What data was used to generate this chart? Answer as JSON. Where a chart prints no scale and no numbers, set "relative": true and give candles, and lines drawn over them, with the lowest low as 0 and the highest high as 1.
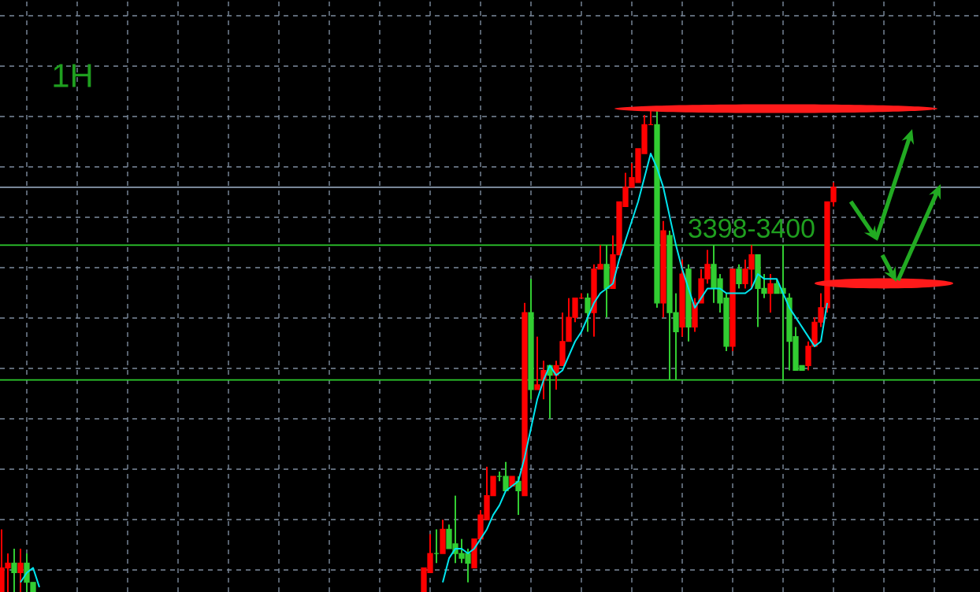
{
  "chart_data": {
    "type": "candlestick",
    "title": "1H",
    "annotations": [
      "3398-3400"
    ],
    "relative": true,
    "grid": true,
    "categories": [
      null,
      null,
      null,
      null,
      null,
      null,
      null,
      null,
      null,
      null,
      null,
      null,
      null,
      null,
      null,
      null,
      null,
      null,
      null,
      null,
      null,
      null,
      null,
      null,
      null,
      null,
      null,
      null,
      null,
      null,
      null,
      null,
      null,
      null,
      null,
      null,
      null,
      null,
      null,
      null,
      null,
      null,
      null,
      null,
      null,
      null,
      null,
      null,
      null,
      null,
      null,
      null,
      null,
      null,
      null,
      null,
      null,
      null,
      null,
      null,
      null,
      null,
      null,
      null,
      null,
      null,
      null,
      null,
      null,
      null,
      null,
      null,
      null,
      null,
      null,
      null,
      null,
      null,
      null,
      null,
      null,
      null,
      null,
      null,
      null,
      null,
      null,
      null,
      null,
      null,
      null,
      null,
      null,
      null,
      null,
      null,
      null,
      null,
      null,
      null,
      null,
      null,
      null,
      null,
      null,
      null,
      null,
      null,
      null,
      null,
      null,
      null,
      null,
      null,
      null,
      null,
      null,
      null,
      null,
      null,
      null,
      null,
      null,
      null,
      null,
      null,
      null,
      null,
      null,
      null,
      null,
      null,
      null
    ],
    "ohlc": [
      [
        0,
        0.13,
        0,
        0.05
      ],
      [
        0.05,
        0.08,
        0,
        0.06
      ],
      [
        0.06,
        0.09,
        0,
        0.04
      ],
      [
        0.04,
        0.09,
        0,
        0.06
      ],
      [
        0.06,
        0.08,
        0,
        0.02
      ],
      [
        0.02,
        0.02,
        0,
        0
      ],
      null,
      null,
      null,
      null,
      null,
      null,
      null,
      null,
      null,
      null,
      null,
      null,
      null,
      null,
      null,
      null,
      null,
      null,
      null,
      null,
      null,
      null,
      null,
      null,
      null,
      null,
      null,
      null,
      null,
      null,
      null,
      null,
      null,
      null,
      null,
      null,
      null,
      null,
      null,
      null,
      null,
      null,
      null,
      null,
      null,
      null,
      null,
      null,
      null,
      null,
      null,
      null,
      null,
      null,
      null,
      null,
      null,
      null,
      null,
      null,
      null,
      [
        0,
        0.05,
        0,
        0.05
      ],
      [
        0.04,
        0.12,
        0.04,
        0.08
      ],
      [
        0.08,
        0.13,
        0.06,
        0.08
      ],
      [
        0.08,
        0.15,
        0.08,
        0.13
      ],
      [
        0.13,
        0.14,
        0.09,
        0.09
      ],
      [
        0.1,
        0.2,
        0.06,
        0.08
      ],
      [
        0.08,
        0.11,
        0.06,
        0.07
      ],
      [
        0.08,
        0.09,
        0.02,
        0.06
      ],
      [
        0.05,
        0.11,
        0.05,
        0.11
      ],
      [
        0.11,
        0.17,
        0.11,
        0.16
      ],
      [
        0.15,
        0.26,
        0.15,
        0.2
      ],
      [
        0.2,
        0.24,
        0.2,
        0.24
      ],
      [
        0.24,
        0.25,
        0.23,
        0.24
      ],
      [
        0.24,
        0.27,
        0.21,
        0.21
      ],
      [
        0.22,
        0.24,
        0.22,
        0.24
      ],
      [
        0.23,
        0.24,
        0.16,
        0.21
      ],
      [
        0.2,
        0.6,
        0.2,
        0.58
      ],
      [
        0.58,
        0.65,
        0.4,
        0.42
      ],
      [
        0.42,
        0.53,
        0.42,
        0.43
      ],
      [
        0.44,
        0.48,
        0.4,
        0.46
      ],
      [
        0.47,
        0.47,
        0.36,
        0.45
      ],
      [
        0.45,
        0.48,
        0.42,
        0.47
      ],
      [
        0.47,
        0.58,
        0.47,
        0.52
      ],
      [
        0.52,
        0.61,
        0.52,
        0.57
      ],
      [
        0.57,
        0.61,
        0.56,
        0.61
      ],
      [
        0.61,
        0.62,
        0.61,
        0.61
      ],
      [
        0.61,
        0.62,
        0.54,
        0.58
      ],
      [
        0.58,
        0.68,
        0.53,
        0.67
      ],
      [
        0.67,
        0.72,
        0.67,
        0.68
      ],
      [
        0.68,
        0.72,
        0.57,
        0.63
      ],
      [
        0.63,
        0.74,
        0.63,
        0.7
      ],
      [
        0.7,
        0.81,
        0.7,
        0.81
      ],
      [
        0.8,
        0.87,
        0.8,
        0.84
      ],
      [
        0.84,
        0.89,
        0.84,
        0.86
      ],
      [
        0.85,
        0.92,
        0.85,
        0.92
      ],
      [
        0.91,
        0.99,
        0.91,
        0.97
      ],
      [
        0.97,
        1.0,
        0.97,
        0.97
      ],
      [
        0.97,
        1.0,
        0.59,
        0.6
      ],
      [
        0.6,
        0.77,
        0.57,
        0.75
      ],
      [
        0.74,
        0.75,
        0.44,
        0.58
      ],
      [
        0.58,
        0.62,
        0.44,
        0.54
      ],
      [
        0.55,
        0.69,
        0.53,
        0.66
      ],
      [
        0.67,
        0.68,
        0.52,
        0.55
      ],
      [
        0.55,
        0.61,
        0.54,
        0.6
      ],
      [
        0.6,
        0.67,
        0.6,
        0.65
      ],
      [
        0.65,
        0.71,
        0.64,
        0.68
      ],
      [
        0.68,
        0.72,
        0.6,
        0.63
      ],
      [
        0.65,
        0.66,
        0.58,
        0.6
      ],
      [
        0.61,
        0.62,
        0.5,
        0.51
      ],
      [
        0.51,
        0.67,
        0.5,
        0.67
      ],
      [
        0.67,
        0.68,
        0.63,
        0.64
      ],
      [
        0.64,
        0.69,
        0.63,
        0.67
      ],
      [
        0.67,
        0.72,
        0.63,
        0.7
      ],
      [
        0.7,
        0.7,
        0.55,
        0.63
      ],
      [
        0.63,
        0.66,
        0.61,
        0.62
      ],
      [
        0.62,
        0.66,
        0.58,
        0.64
      ],
      [
        0.64,
        0.65,
        0.62,
        0.62
      ],
      [
        0.63,
        0.72,
        0.44,
        0.62
      ],
      [
        0.61,
        0.62,
        0.46,
        0.52
      ],
      [
        0.53,
        0.55,
        0.46,
        0.46
      ],
      [
        0.47,
        0.47,
        0.46,
        0.46
      ],
      [
        0.47,
        0.52,
        0.46,
        0.51
      ],
      [
        0.51,
        0.57,
        0.51,
        0.56
      ],
      [
        0.56,
        0.62,
        0.55,
        0.59
      ],
      [
        0.59,
        0.81,
        0.58,
        0.81
      ],
      [
        0.81,
        0.85,
        0.8,
        0.84
      ]
    ],
    "colors": [
      "#ff0000",
      "#ff0000",
      "#32cd32",
      "#ff0000",
      "#32cd32",
      "#32cd32",
      null,
      null,
      null,
      null,
      null,
      null,
      null,
      null,
      null,
      null,
      null,
      null,
      null,
      null,
      null,
      null,
      null,
      null,
      null,
      null,
      null,
      null,
      null,
      null,
      null,
      null,
      null,
      null,
      null,
      null,
      null,
      null,
      null,
      null,
      null,
      null,
      null,
      null,
      null,
      null,
      null,
      null,
      null,
      null,
      null,
      null,
      null,
      null,
      null,
      null,
      null,
      null,
      null,
      null,
      null,
      null,
      null,
      null,
      null,
      null,
      null,
      "#ff0000",
      "#ff0000",
      "#32cd32",
      "#ff0000",
      "#32cd32",
      "#32cd32",
      "#32cd32",
      "#32cd32",
      "#ff0000",
      "#ff0000",
      "#ff0000",
      "#ff0000",
      "#32cd32",
      "#32cd32",
      "#ff0000",
      "#32cd32",
      "#ff0000",
      "#32cd32",
      "#ff0000",
      "#ff0000",
      "#32cd32",
      "#ff0000",
      "#ff0000",
      "#ff0000",
      "#ff0000",
      "#ff0000",
      "#32cd32",
      "#ff0000",
      "#ff0000",
      "#32cd32",
      "#ff0000",
      "#ff0000",
      "#ff0000",
      "#ff0000",
      "#ff0000",
      "#ff0000",
      "#ff0000",
      "#32cd32",
      "#ff0000",
      "#32cd32",
      "#32cd32",
      "#ff0000",
      "#32cd32",
      "#ff0000",
      "#ff0000",
      "#ff0000",
      "#32cd32",
      "#32cd32",
      "#32cd32",
      "#ff0000",
      "#32cd32",
      "#ff0000",
      "#ff0000",
      "#32cd32",
      "#32cd32",
      "#ff0000",
      "#32cd32",
      "#32cd32",
      "#32cd32",
      "#32cd32",
      "#32cd32",
      "#ff0000",
      "#ff0000",
      "#ff0000",
      "#ff0000",
      "#ff0000"
    ],
    "series": [
      {
        "type": "line",
        "color": "#00e5ee",
        "values": [
          null,
          null,
          null,
          0.02,
          0.04,
          0.05,
          0.01,
          null,
          null,
          null,
          null,
          null,
          null,
          null,
          null,
          null,
          null,
          null,
          null,
          null,
          null,
          null,
          null,
          null,
          null,
          null,
          null,
          null,
          null,
          null,
          null,
          null,
          null,
          null,
          null,
          null,
          null,
          null,
          null,
          null,
          null,
          null,
          null,
          null,
          null,
          null,
          null,
          null,
          null,
          null,
          null,
          null,
          null,
          null,
          null,
          null,
          null,
          null,
          null,
          null,
          null,
          null,
          null,
          null,
          null,
          null,
          null,
          null,
          null,
          null,
          0.02,
          0.07,
          0.09,
          0.09,
          0.08,
          0.09,
          0.11,
          0.13,
          0.16,
          0.18,
          0.21,
          0.22,
          0.23,
          0.28,
          0.34,
          0.4,
          0.44,
          0.47,
          0.45,
          0.46,
          0.49,
          0.52,
          0.54,
          0.57,
          0.6,
          0.62,
          0.63,
          0.64,
          0.69,
          0.73,
          0.77,
          0.81,
          0.86,
          0.91,
          0.88,
          0.84,
          0.78,
          0.72,
          0.67,
          0.63,
          0.59,
          0.61,
          0.63,
          0.63,
          0.63,
          0.62,
          0.62,
          0.62,
          0.62,
          0.63,
          0.66,
          0.65,
          0.65,
          0.65,
          0.62,
          0.59,
          0.57,
          0.55,
          0.53,
          0.51,
          0.52,
          0.6,
          null
        ]
      }
    ],
    "ref_lines": [
      {
        "axis": "y",
        "value": 0.84,
        "color": "#8c9cb0"
      },
      {
        "axis": "y",
        "value": 0.72,
        "color": "#2ecc2e"
      },
      {
        "axis": "y",
        "value": 0.44,
        "color": "#2ecc2e"
      }
    ]
  }
}
